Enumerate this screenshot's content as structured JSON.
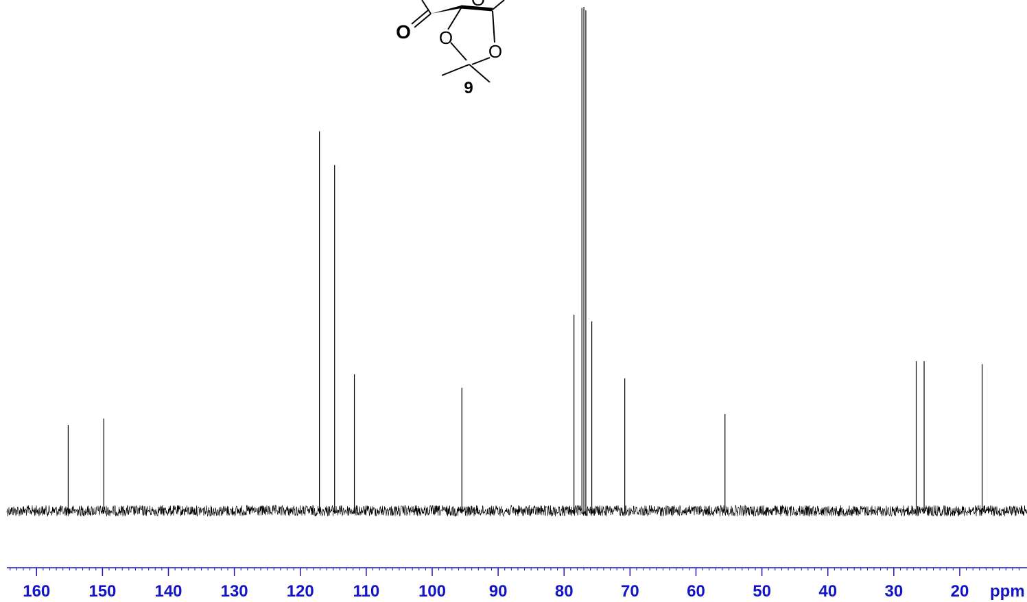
{
  "chart_data": {
    "type": "line",
    "spectrum_kind": "13C NMR",
    "xunit": "ppm",
    "x_reversed": true,
    "xlim": [
      164.5,
      9.8
    ],
    "x_ticks": [
      160,
      150,
      140,
      130,
      120,
      110,
      100,
      90,
      80,
      70,
      60,
      50,
      40,
      30,
      20
    ],
    "peaks": [
      {
        "x": 155.2,
        "y": 0.17
      },
      {
        "x": 149.8,
        "y": 0.183
      },
      {
        "x": 117.1,
        "y": 0.753
      },
      {
        "x": 114.8,
        "y": 0.686
      },
      {
        "x": 111.8,
        "y": 0.271
      },
      {
        "x": 95.5,
        "y": 0.244
      },
      {
        "x": 78.5,
        "y": 0.389
      },
      {
        "x": 77.3,
        "y": 0.998
      },
      {
        "x": 77.0,
        "y": 1.0
      },
      {
        "x": 76.7,
        "y": 0.993
      },
      {
        "x": 75.8,
        "y": 0.376
      },
      {
        "x": 70.8,
        "y": 0.263
      },
      {
        "x": 55.6,
        "y": 0.192
      },
      {
        "x": 26.6,
        "y": 0.297
      },
      {
        "x": 25.4,
        "y": 0.297
      },
      {
        "x": 16.6,
        "y": 0.291
      }
    ],
    "colors": {
      "trace": "#000000",
      "axis": "#1414c8"
    }
  },
  "structure": {
    "compound_label": "9",
    "atoms": [
      "O",
      "O",
      "O",
      "O"
    ]
  }
}
